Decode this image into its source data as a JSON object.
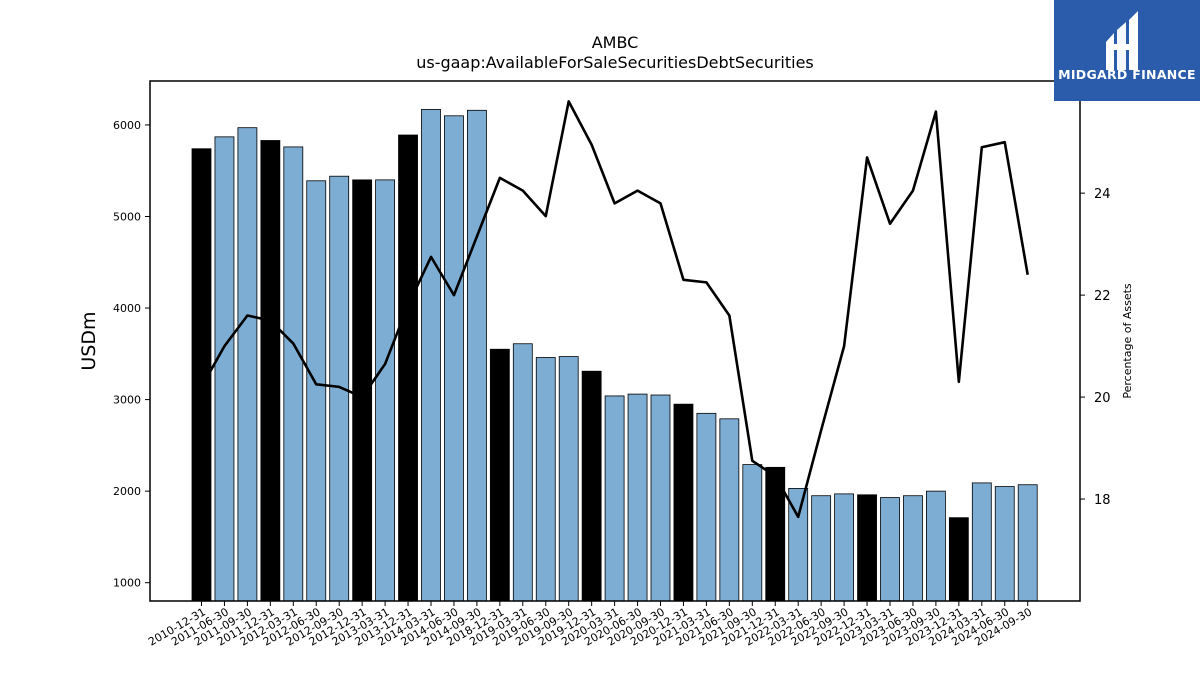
{
  "chart_data": {
    "type": "bar",
    "title": "AMBC",
    "subtitle": "us-gaap:AvailableForSaleSecuritiesDebtSecurities",
    "ylabel": "USDm",
    "y2label": "Percentage of Assets",
    "ylim": [
      800,
      6480
    ],
    "y2lim": [
      16.0,
      26.2
    ],
    "yticks": [
      1000,
      2000,
      3000,
      4000,
      5000,
      6000
    ],
    "y2ticks": [
      18,
      20,
      22,
      24
    ],
    "categories": [
      "2010-12-31",
      "2011-06-30",
      "2011-09-30",
      "2011-12-31",
      "2012-03-31",
      "2012-06-30",
      "2012-09-30",
      "2012-12-31",
      "2013-03-31",
      "2013-12-31",
      "2014-03-31",
      "2014-06-30",
      "2014-09-30",
      "2018-12-31",
      "2019-03-31",
      "2019-06-30",
      "2019-09-30",
      "2019-12-31",
      "2020-03-31",
      "2020-06-30",
      "2020-09-30",
      "2020-12-31",
      "2021-03-31",
      "2021-06-30",
      "2021-09-30",
      "2021-12-31",
      "2022-03-31",
      "2022-06-30",
      "2022-09-30",
      "2022-12-31",
      "2023-03-31",
      "2023-06-30",
      "2023-09-30",
      "2023-12-31",
      "2024-03-31",
      "2024-06-30",
      "2024-09-30"
    ],
    "series": [
      {
        "type": "bar",
        "values": [
          5740,
          5870,
          5970,
          5830,
          5760,
          5390,
          5440,
          5400,
          5400,
          5890,
          6170,
          6100,
          6160,
          3550,
          3610,
          3460,
          3470,
          3310,
          3040,
          3060,
          3050,
          2950,
          2850,
          2790,
          2290,
          2260,
          2030,
          1950,
          1970,
          1960,
          1930,
          1950,
          2000,
          1710,
          2090,
          2050,
          2070
        ],
        "year_end": [
          true,
          false,
          false,
          true,
          false,
          false,
          false,
          true,
          false,
          true,
          false,
          false,
          false,
          true,
          false,
          false,
          false,
          true,
          false,
          false,
          false,
          true,
          false,
          false,
          false,
          true,
          false,
          false,
          false,
          true,
          false,
          false,
          false,
          true,
          false,
          false,
          false
        ]
      },
      {
        "type": "line",
        "axis": "secondary",
        "values": [
          20.2,
          21.0,
          21.6,
          21.5,
          21.05,
          20.25,
          20.2,
          20.0,
          20.65,
          21.8,
          22.75,
          22.0,
          23.15,
          24.3,
          24.05,
          23.55,
          25.8,
          24.95,
          23.8,
          24.05,
          23.8,
          22.3,
          22.25,
          21.6,
          18.75,
          18.45,
          17.65,
          19.35,
          21.0,
          24.7,
          23.4,
          24.05,
          25.6,
          20.3,
          24.9,
          25.0,
          22.4
        ]
      }
    ],
    "colors": {
      "bar": "#7eadd4",
      "bar_year_end": "#000000",
      "line": "#000000"
    },
    "grid": false,
    "legend": "none"
  },
  "brand": {
    "name": "MIDGARD FINANCE",
    "background": "#2b5cab"
  }
}
